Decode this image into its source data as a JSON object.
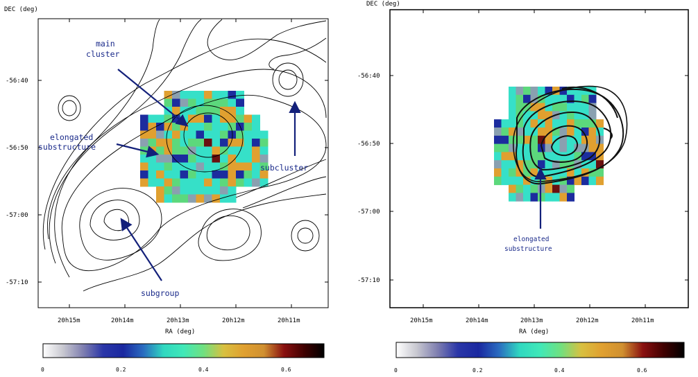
{
  "left_panel": {
    "dec_title": "DEC (deg)",
    "ra_title": "RA (deg)",
    "dec_ticks": [
      "-56:40",
      "-56:50",
      "-57:00",
      "-57:10"
    ],
    "ra_ticks": [
      "20h15m",
      "20h14m",
      "20h13m",
      "20h12m",
      "20h11m"
    ],
    "annotations": {
      "main_cluster": [
        "main",
        "cluster"
      ],
      "elongated": [
        "elongated",
        "substructure"
      ],
      "subcluster": "subcluster",
      "subgroup": "subgroup"
    }
  },
  "right_panel": {
    "dec_title": "DEC (deg)",
    "ra_title": "RA (deg)",
    "dec_ticks": [
      "-56:40",
      "-56:50",
      "-57:00",
      "-57:10"
    ],
    "ra_ticks": [
      "20h15m",
      "20h14m",
      "20h13m",
      "20h12m",
      "20h11m"
    ],
    "annotations": {
      "elongated": [
        "elongated",
        "substructure"
      ]
    }
  },
  "colorbar": {
    "ticks": [
      "0",
      "0.2",
      "0.4",
      "0.6"
    ],
    "stops": [
      "#ffffff",
      "#c8c8d0",
      "#7f7fb0",
      "#2a36a8",
      "#1a28a0",
      "#2a6cc0",
      "#30d8c0",
      "#40e8b8",
      "#70e080",
      "#d8c040",
      "#e0a030",
      "#d09030",
      "#8a1010",
      "#400000",
      "#000000"
    ]
  },
  "colors": {
    "arrow": "#13207a",
    "contour": "#000000",
    "map_cyan": "#36e0c8",
    "map_green": "#5cd87c",
    "map_orange": "#e0a030",
    "map_blue": "#1c2c9e",
    "map_gray": "#8aa0b0",
    "map_dark": "#6a1010"
  }
}
